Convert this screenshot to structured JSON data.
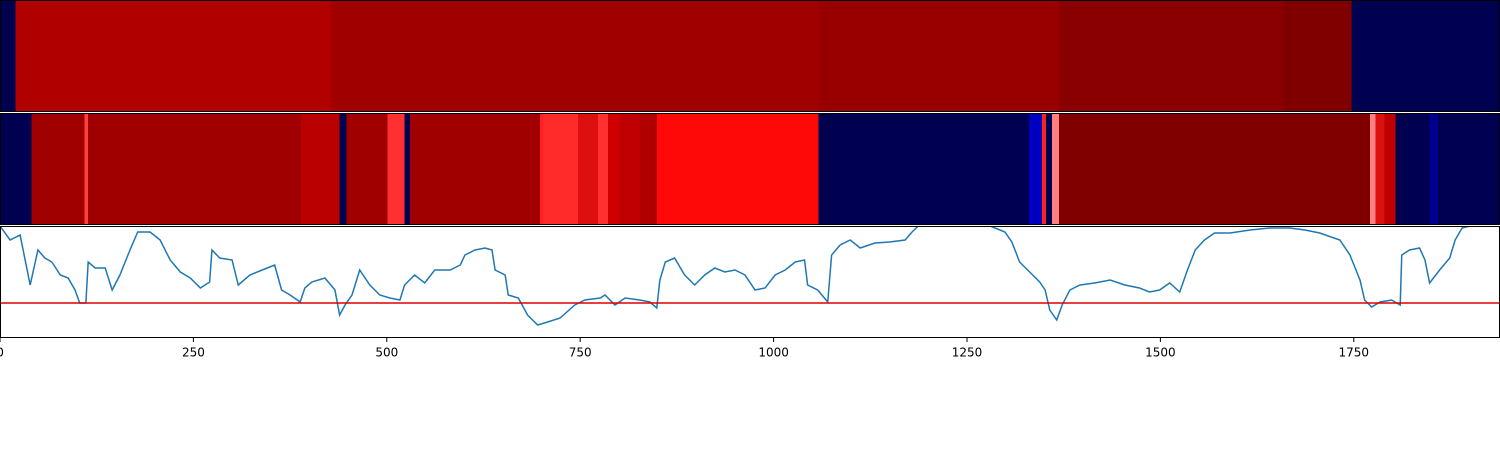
{
  "chart_data": [
    {
      "type": "heatmap",
      "xlim": [
        0,
        1939
      ],
      "segments": [
        {
          "start": 0,
          "end": 20,
          "color": "#000050"
        },
        {
          "start": 20,
          "end": 428,
          "color": "#b00000"
        },
        {
          "start": 428,
          "end": 1058,
          "color": "#a00000"
        },
        {
          "start": 1058,
          "end": 1369,
          "color": "#980000"
        },
        {
          "start": 1369,
          "end": 1658,
          "color": "#8a0000"
        },
        {
          "start": 1658,
          "end": 1747,
          "color": "#800000"
        },
        {
          "start": 1747,
          "end": 1939,
          "color": "#000050"
        }
      ]
    },
    {
      "type": "heatmap",
      "xlim": [
        0,
        1939
      ],
      "segments": [
        {
          "start": 0,
          "end": 41,
          "color": "#000050"
        },
        {
          "start": 41,
          "end": 109,
          "color": "#a00000"
        },
        {
          "start": 109,
          "end": 114,
          "color": "#ff4040"
        },
        {
          "start": 114,
          "end": 389,
          "color": "#a00000"
        },
        {
          "start": 389,
          "end": 439,
          "color": "#bb0000"
        },
        {
          "start": 439,
          "end": 448,
          "color": "#000050"
        },
        {
          "start": 448,
          "end": 501,
          "color": "#a00000"
        },
        {
          "start": 501,
          "end": 523,
          "color": "#ff3030"
        },
        {
          "start": 523,
          "end": 530,
          "color": "#000050"
        },
        {
          "start": 530,
          "end": 698,
          "color": "#a00000"
        },
        {
          "start": 698,
          "end": 702,
          "color": "#ff2020"
        },
        {
          "start": 702,
          "end": 747,
          "color": "#ff2a2a"
        },
        {
          "start": 747,
          "end": 773,
          "color": "#dd1010"
        },
        {
          "start": 773,
          "end": 786,
          "color": "#ff3030"
        },
        {
          "start": 786,
          "end": 801,
          "color": "#d00000"
        },
        {
          "start": 801,
          "end": 827,
          "color": "#c00000"
        },
        {
          "start": 827,
          "end": 849,
          "color": "#b00000"
        },
        {
          "start": 849,
          "end": 1058,
          "color": "#ff0808"
        },
        {
          "start": 1058,
          "end": 1330,
          "color": "#000050"
        },
        {
          "start": 1330,
          "end": 1347,
          "color": "#0000c0"
        },
        {
          "start": 1347,
          "end": 1352,
          "color": "#ff2020"
        },
        {
          "start": 1352,
          "end": 1360,
          "color": "#000050"
        },
        {
          "start": 1360,
          "end": 1369,
          "color": "#ff8080"
        },
        {
          "start": 1369,
          "end": 1771,
          "color": "#800000"
        },
        {
          "start": 1771,
          "end": 1778,
          "color": "#ff8080"
        },
        {
          "start": 1778,
          "end": 1790,
          "color": "#dd1010"
        },
        {
          "start": 1790,
          "end": 1804,
          "color": "#c00000"
        },
        {
          "start": 1804,
          "end": 1848,
          "color": "#000050"
        },
        {
          "start": 1848,
          "end": 1859,
          "color": "#000090"
        },
        {
          "start": 1859,
          "end": 1939,
          "color": "#000050"
        }
      ]
    },
    {
      "type": "line",
      "xlim": [
        0,
        1939
      ],
      "ylim": [
        0,
        112
      ],
      "xticks": [
        0,
        250,
        500,
        750,
        1000,
        1250,
        1500,
        1750
      ],
      "hline": {
        "value": 35,
        "color": "#e00000"
      },
      "x": [
        0,
        13,
        26,
        39,
        49,
        58,
        67,
        78,
        88,
        97,
        103,
        111,
        114,
        123,
        136,
        145,
        155,
        168,
        178,
        194,
        207,
        220,
        233,
        246,
        259,
        271,
        274,
        284,
        300,
        308,
        323,
        339,
        355,
        364,
        375,
        388,
        394,
        403,
        420,
        433,
        439,
        446,
        455,
        465,
        478,
        491,
        504,
        517,
        523,
        536,
        549,
        562,
        582,
        595,
        601,
        614,
        627,
        636,
        640,
        653,
        657,
        670,
        682,
        695,
        708,
        724,
        743,
        756,
        776,
        782,
        795,
        808,
        827,
        840,
        849,
        853,
        860,
        872,
        885,
        898,
        911,
        924,
        937,
        950,
        963,
        976,
        989,
        1002,
        1015,
        1028,
        1040,
        1044,
        1057,
        1070,
        1075,
        1086,
        1099,
        1112,
        1131,
        1150,
        1170,
        1179,
        1187,
        1208,
        1241,
        1280,
        1299,
        1308,
        1318,
        1331,
        1344,
        1351,
        1357,
        1366,
        1373,
        1383,
        1396,
        1415,
        1435,
        1454,
        1473,
        1486,
        1499,
        1512,
        1525,
        1535,
        1545,
        1557,
        1570,
        1590,
        1616,
        1641,
        1667,
        1687,
        1706,
        1732,
        1745,
        1758,
        1764,
        1773,
        1784,
        1799,
        1810,
        1812,
        1822,
        1835,
        1842,
        1848,
        1861,
        1874,
        1881,
        1890,
        1900
      ],
      "series": [
        {
          "color": "#1f77b4",
          "values": [
            112,
            98,
            103,
            53,
            88,
            80,
            76,
            63,
            60,
            48,
            35,
            35,
            76,
            70,
            70,
            48,
            63,
            88,
            106,
            106,
            98,
            78,
            66,
            60,
            50,
            56,
            88,
            80,
            78,
            53,
            63,
            68,
            73,
            48,
            43,
            36,
            50,
            56,
            60,
            48,
            23,
            33,
            43,
            68,
            53,
            43,
            40,
            38,
            53,
            63,
            55,
            68,
            68,
            73,
            83,
            88,
            90,
            88,
            68,
            63,
            43,
            40,
            23,
            13,
            16,
            20,
            33,
            38,
            40,
            43,
            33,
            40,
            38,
            36,
            30,
            58,
            76,
            80,
            63,
            53,
            63,
            70,
            66,
            68,
            63,
            48,
            50,
            63,
            68,
            76,
            78,
            53,
            48,
            36,
            83,
            93,
            98,
            90,
            95,
            96,
            98,
            106,
            112,
            112,
            112,
            112,
            106,
            96,
            76,
            66,
            56,
            48,
            28,
            18,
            33,
            48,
            53,
            55,
            58,
            53,
            50,
            46,
            48,
            55,
            46,
            68,
            88,
            98,
            105,
            105,
            108,
            110,
            110,
            108,
            105,
            98,
            83,
            58,
            38,
            31,
            36,
            38,
            33,
            83,
            88,
            90,
            78,
            55,
            68,
            80,
            98,
            110,
            112
          ]
        }
      ]
    }
  ]
}
